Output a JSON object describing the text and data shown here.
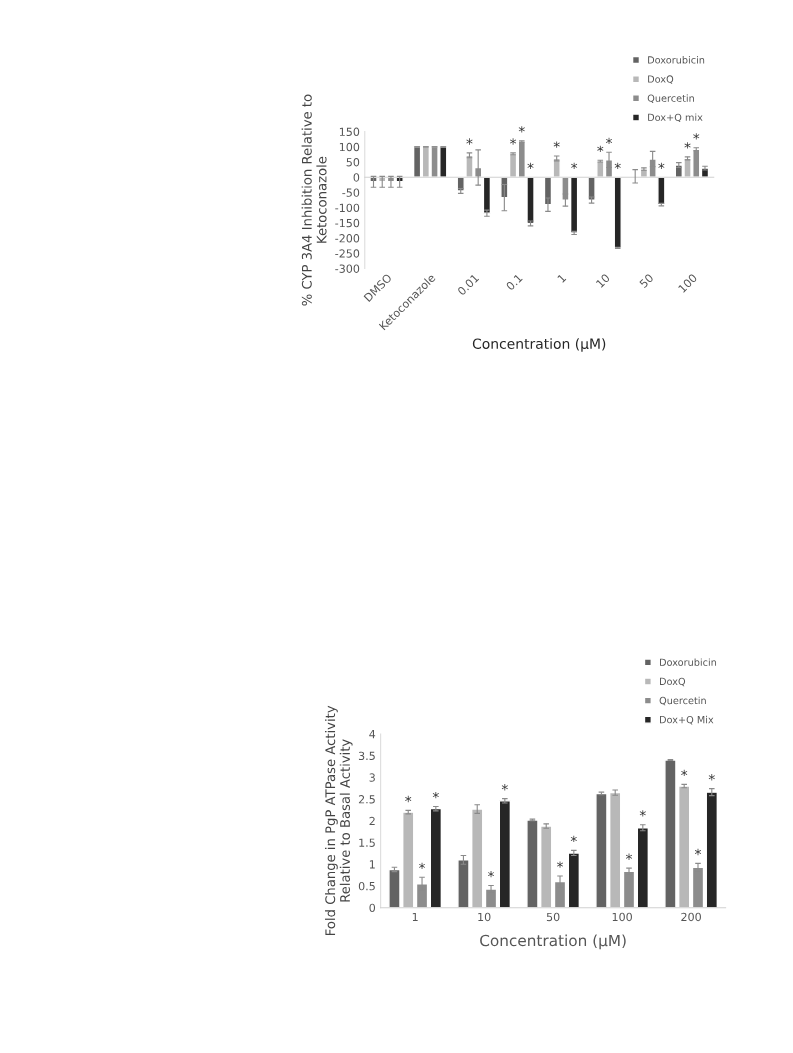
{
  "chart_data": [
    {
      "type": "bar",
      "xlabel": "Concentration (µM)",
      "ylabel": "% CYP 3A4 Inhibition Relative to\nKetoconazole",
      "categories": [
        "DMSO",
        "Ketoconazole",
        "0.01",
        "0.1",
        "1",
        "10",
        "50",
        "100"
      ],
      "ylim": [
        -300,
        150
      ],
      "yticks": [
        -300,
        -250,
        -200,
        -150,
        -100,
        -50,
        0,
        50,
        100,
        150
      ],
      "legend": "top right",
      "series": [
        {
          "name": "Doxorubicin",
          "color": "#636363",
          "values": [
            -15,
            100,
            -45,
            -67,
            -90,
            -75,
            3,
            40
          ],
          "errors": [
            18,
            null,
            8,
            43,
            22,
            10,
            22,
            8
          ],
          "value_labels": [
            null,
            null,
            null,
            null,
            null,
            null,
            null,
            null
          ]
        },
        {
          "name": "DoxQ",
          "color": "#b8b8b8",
          "values": [
            -15,
            100,
            72,
            77,
            62,
            53,
            27,
            62
          ],
          "errors": [
            18,
            null,
            8,
            3,
            8,
            3,
            4,
            5
          ],
          "value_labels": [
            null,
            null,
            "*",
            "*",
            "*",
            "*",
            null,
            "*"
          ]
        },
        {
          "name": "Quercetin",
          "color": "#8c8c8c",
          "values": [
            -15,
            100,
            32,
            118,
            -75,
            57,
            60,
            92
          ],
          "errors": [
            18,
            null,
            58,
            2,
            20,
            25,
            25,
            5
          ],
          "value_labels": [
            null,
            null,
            null,
            "*",
            null,
            "*",
            null,
            "*"
          ]
        },
        {
          "name": "Dox+Q mix",
          "color": "#262626",
          "values": [
            -15,
            100,
            -118,
            -152,
            -183,
            -232,
            -90,
            30
          ],
          "errors": [
            18,
            null,
            10,
            8,
            5,
            2,
            4,
            6
          ],
          "value_labels": [
            null,
            null,
            null,
            "*",
            "*",
            "*",
            "*",
            null
          ]
        }
      ]
    },
    {
      "type": "bar",
      "xlabel": "Concentration (µM)",
      "ylabel": "Fold Change in PgP ATPase Activity\nRelative to Basal Activity",
      "categories": [
        "1",
        "10",
        "50",
        "100",
        "200"
      ],
      "ylim": [
        0,
        4
      ],
      "yticks": [
        0,
        0.5,
        1,
        1.5,
        2,
        2.5,
        3,
        3.5,
        4
      ],
      "legend": "top right",
      "series": [
        {
          "name": "Doxorubicin",
          "color": "#636363",
          "values": [
            0.88,
            1.1,
            2.02,
            2.63,
            3.4
          ],
          "errors": [
            0.05,
            0.1,
            0.02,
            0.03,
            0.01
          ],
          "value_labels": [
            null,
            null,
            null,
            null,
            null
          ]
        },
        {
          "name": "DoxQ",
          "color": "#b8b8b8",
          "values": [
            2.2,
            2.27,
            1.88,
            2.65,
            2.8
          ],
          "errors": [
            0.04,
            0.1,
            0.05,
            0.06,
            0.04
          ],
          "value_labels": [
            "*",
            null,
            null,
            null,
            "*"
          ]
        },
        {
          "name": "Quercetin",
          "color": "#8c8c8c",
          "values": [
            0.55,
            0.43,
            0.6,
            0.84,
            0.93
          ],
          "errors": [
            0.15,
            0.08,
            0.13,
            0.07,
            0.09
          ],
          "value_labels": [
            "*",
            "*",
            "*",
            "*",
            "*"
          ]
        },
        {
          "name": "Dox+Q Mix",
          "color": "#262626",
          "values": [
            2.28,
            2.46,
            1.26,
            1.84,
            2.66
          ],
          "errors": [
            0.05,
            0.05,
            0.06,
            0.07,
            0.08
          ],
          "value_labels": [
            "*",
            "*",
            "*",
            "*",
            "*"
          ]
        }
      ]
    }
  ]
}
